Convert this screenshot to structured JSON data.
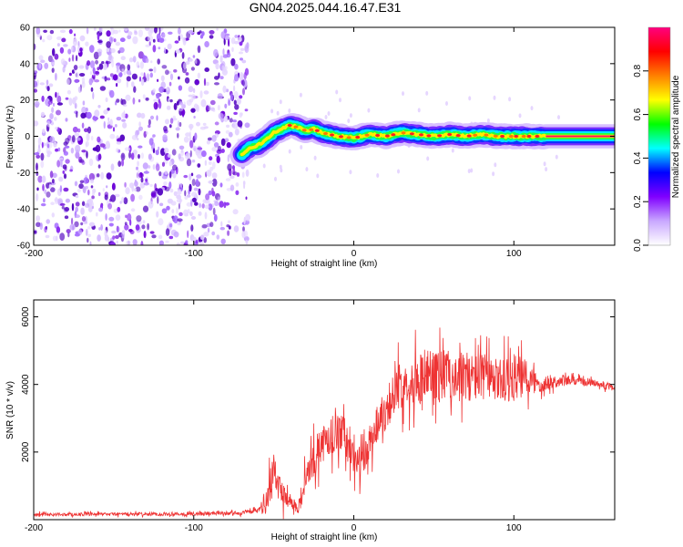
{
  "title": "GN04.2025.044.16.47.E31",
  "chart_data": [
    {
      "type": "heatmap",
      "xlabel": "Height of straight line (km)",
      "ylabel": "Frequency (Hz)",
      "xlim": [
        -200,
        163
      ],
      "ylim": [
        -60,
        60
      ],
      "xticks": [
        -200,
        -100,
        0,
        100
      ],
      "yticks": [
        60,
        40,
        20,
        0,
        -20,
        -40,
        -60
      ],
      "colorbar": {
        "label": "Normalized spectral amplitude",
        "range": [
          0,
          1
        ],
        "ticks": [
          "0.0",
          "0.2",
          "0.4",
          "0.6",
          "0.8"
        ],
        "tick_values": [
          0,
          0.2,
          0.4,
          0.6,
          0.8
        ],
        "colors": [
          "#ffffff",
          "#c9a8ff",
          "#8000ff",
          "#0000ff",
          "#00ffff",
          "#00ff00",
          "#ffff00",
          "#ff8000",
          "#ff0000",
          "#ff0080"
        ]
      },
      "noise_region_x": [
        -200,
        -66
      ],
      "ridge": {
        "x": [
          -70,
          -65,
          -60,
          -55,
          -50,
          -45,
          -40,
          -35,
          -30,
          -25,
          -20,
          -10,
          0,
          10,
          20,
          30,
          40,
          50,
          60,
          70,
          80,
          90,
          100,
          110,
          120,
          140,
          163
        ],
        "freq": [
          -10,
          -6,
          -5,
          -2,
          2,
          4,
          6,
          5,
          3,
          4,
          2,
          0,
          -1,
          1,
          0,
          2,
          1,
          0,
          1,
          0,
          1,
          0,
          0,
          0,
          0,
          0,
          0
        ]
      }
    },
    {
      "type": "line",
      "xlabel": "Height of straight line (km)",
      "ylabel": "SNR (10 * v/v)",
      "xlim": [
        -200,
        163
      ],
      "ylim": [
        0,
        6500
      ],
      "xticks": [
        -200,
        -100,
        0,
        100
      ],
      "yticks": [
        2000,
        4000,
        6000
      ],
      "color": "#ee3333",
      "series": [
        {
          "x": [
            -200,
            -150,
            -100,
            -70,
            -60,
            -55,
            -50,
            -45,
            -40,
            -35,
            -30,
            -25,
            -20,
            -15,
            -10,
            -5,
            0,
            5,
            10,
            15,
            20,
            25,
            30,
            40,
            50,
            60,
            70,
            80,
            90,
            100,
            110,
            115,
            120,
            130,
            140,
            150,
            163
          ],
          "values": [
            150,
            160,
            170,
            200,
            260,
            500,
            1400,
            800,
            600,
            300,
            1200,
            1800,
            2200,
            2400,
            2800,
            2300,
            1800,
            1600,
            2300,
            2900,
            3300,
            3700,
            4000,
            4200,
            4300,
            4250,
            4200,
            4250,
            4100,
            4200,
            4150,
            4000,
            4050,
            4100,
            4100,
            4050,
            3900
          ],
          "spread": [
            80,
            80,
            90,
            90,
            120,
            700,
            900,
            700,
            400,
            300,
            800,
            900,
            1000,
            1000,
            1100,
            900,
            900,
            900,
            1000,
            1000,
            1100,
            1100,
            1200,
            1300,
            1400,
            1300,
            1200,
            1200,
            1100,
            1200,
            900,
            500,
            400,
            250,
            200,
            180,
            200
          ]
        }
      ]
    }
  ]
}
